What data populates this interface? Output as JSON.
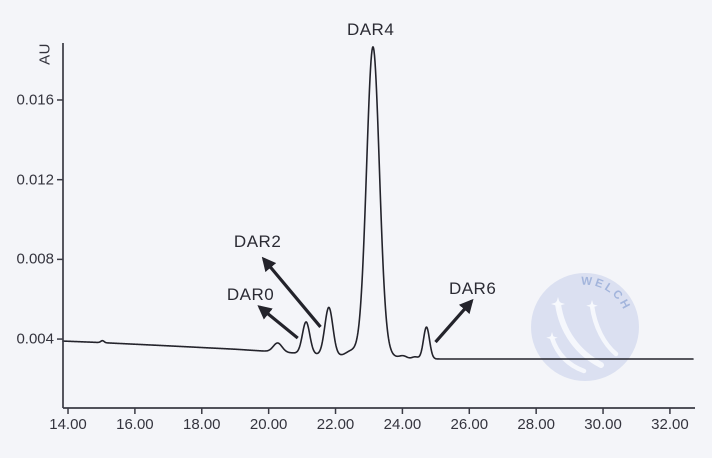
{
  "watermark": {
    "text": "WELCH",
    "circle_color": "#cbd4ec",
    "text_color": "#a3b5dc",
    "swoosh_color": "#f7f9fd"
  },
  "chart_data": {
    "type": "line",
    "title": "",
    "xlabel": "",
    "ylabel": "AU",
    "x_ticks": [
      "14.00",
      "16.00",
      "18.00",
      "20.00",
      "22.00",
      "24.00",
      "26.00",
      "28.00",
      "30.00",
      "32.00"
    ],
    "x_tick_values": [
      14,
      16,
      18,
      20,
      22,
      24,
      26,
      28,
      30,
      32
    ],
    "y_ticks": [
      "0.004",
      "0.008",
      "0.012",
      "0.016"
    ],
    "y_tick_values": [
      0.004,
      0.008,
      0.012,
      0.016
    ],
    "xlim": [
      13.85,
      32.75
    ],
    "ylim": [
      0.00054,
      0.01886
    ],
    "grid": false,
    "legend": "none",
    "line_color": "#23232b",
    "axis_color": "#3a3a44",
    "background_color": "#f4f5f9",
    "baseline_drift": [
      [
        13.85,
        0.0039
      ],
      [
        14.9,
        0.00383
      ],
      [
        15.15,
        0.00381
      ],
      [
        17.0,
        0.00366
      ],
      [
        19.0,
        0.00349
      ],
      [
        20.3,
        0.00335
      ],
      [
        21.5,
        0.00322
      ],
      [
        22.5,
        0.00312
      ],
      [
        23.2,
        0.00306
      ],
      [
        24.2,
        0.00301
      ],
      [
        24.9,
        0.003
      ],
      [
        32.72,
        0.003
      ]
    ],
    "peaks": [
      {
        "name": "baseline-blip",
        "rt": 15.03,
        "height": 0.0001,
        "sigma": 0.05
      },
      {
        "name": "pre-peak-shoulder",
        "rt": 20.27,
        "height": 0.00045,
        "sigma": 0.13
      },
      {
        "name": "DAR0",
        "rt": 21.12,
        "height": 0.0016,
        "sigma": 0.11
      },
      {
        "name": "DAR2",
        "rt": 21.8,
        "height": 0.0024,
        "sigma": 0.12
      },
      {
        "name": "inter-peak-bump",
        "rt": 22.45,
        "height": 0.0002,
        "sigma": 0.15
      },
      {
        "name": "DAR4",
        "rt": 23.12,
        "height": 0.015,
        "sigma": 0.19
      },
      {
        "name": "DAR4-base-broadening",
        "rt": 23.12,
        "height": 0.0006,
        "sigma": 0.34
      },
      {
        "name": "post-peak-bump-1",
        "rt": 24.02,
        "height": 0.00013,
        "sigma": 0.11
      },
      {
        "name": "post-peak-bump-2",
        "rt": 24.38,
        "height": 0.0001,
        "sigma": 0.09
      },
      {
        "name": "DAR6",
        "rt": 24.72,
        "height": 0.0016,
        "sigma": 0.09
      }
    ],
    "annotations": [
      {
        "label": "DAR0",
        "label_x": 19.46,
        "label_y": 0.00621,
        "arrow_tail": [
          20.87,
          0.00405
        ],
        "arrow_head": [
          19.73,
          0.00561
        ]
      },
      {
        "label": "DAR2",
        "label_x": 19.67,
        "label_y": 0.00887,
        "arrow_tail": [
          21.55,
          0.00461
        ],
        "arrow_head": [
          19.85,
          0.00802
        ]
      },
      {
        "label": "DAR4",
        "label_x": 23.05,
        "label_y": 0.01951,
        "arrow_tail": null,
        "arrow_head": null
      },
      {
        "label": "DAR6",
        "label_x": 26.1,
        "label_y": 0.00651,
        "arrow_tail": [
          24.99,
          0.00385
        ],
        "arrow_head": [
          26.07,
          0.00591
        ]
      }
    ]
  }
}
